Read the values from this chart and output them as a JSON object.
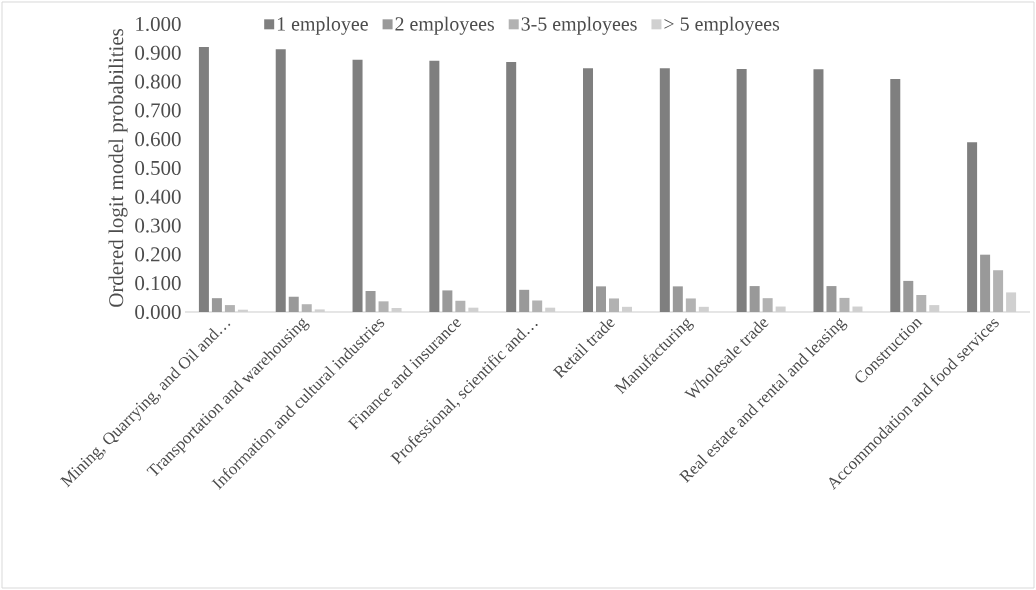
{
  "chart_data": {
    "type": "bar",
    "ylabel": "Ordered logit model probabilities",
    "categories": [
      "Mining, Quarrying, and Oil and…",
      "Transportation and warehousing",
      "Information and cultural industries",
      "Finance and insurance",
      "Professional, scientific and…",
      "Retail trade",
      "Manufacturing",
      "Wholesale trade",
      "Real estate and rental and leasing",
      "Construction",
      "Accommodation and food services"
    ],
    "series": [
      {
        "name": "1 employee",
        "color": "#7f7f7f",
        "values": [
          0.92,
          0.912,
          0.876,
          0.872,
          0.868,
          0.846,
          0.846,
          0.844,
          0.843,
          0.809,
          0.589
        ]
      },
      {
        "name": "2 employees",
        "color": "#999999",
        "values": [
          0.048,
          0.053,
          0.073,
          0.075,
          0.077,
          0.089,
          0.089,
          0.09,
          0.09,
          0.108,
          0.199
        ]
      },
      {
        "name": "3-5 employees",
        "color": "#b2b2b2",
        "values": [
          0.024,
          0.027,
          0.037,
          0.039,
          0.04,
          0.047,
          0.047,
          0.048,
          0.049,
          0.059,
          0.145
        ]
      },
      {
        "name": "> 5 employees",
        "color": "#d0d0d0",
        "values": [
          0.008,
          0.009,
          0.014,
          0.015,
          0.015,
          0.018,
          0.018,
          0.019,
          0.019,
          0.024,
          0.068
        ]
      }
    ],
    "ylim": [
      0,
      1
    ],
    "yticks": [
      {
        "value": 0,
        "label": "0.000"
      },
      {
        "value": 0.1,
        "label": "0.100"
      },
      {
        "value": 0.2,
        "label": "0.200"
      },
      {
        "value": 0.3,
        "label": "0.300"
      },
      {
        "value": 0.4,
        "label": "0.400"
      },
      {
        "value": 0.5,
        "label": "0.500"
      },
      {
        "value": 0.6,
        "label": "0.600"
      },
      {
        "value": 0.7,
        "label": "0.700"
      },
      {
        "value": 0.8,
        "label": "0.800"
      },
      {
        "value": 0.9,
        "label": "0.900"
      },
      {
        "value": 1,
        "label": "1.000"
      }
    ],
    "legend": "top"
  }
}
